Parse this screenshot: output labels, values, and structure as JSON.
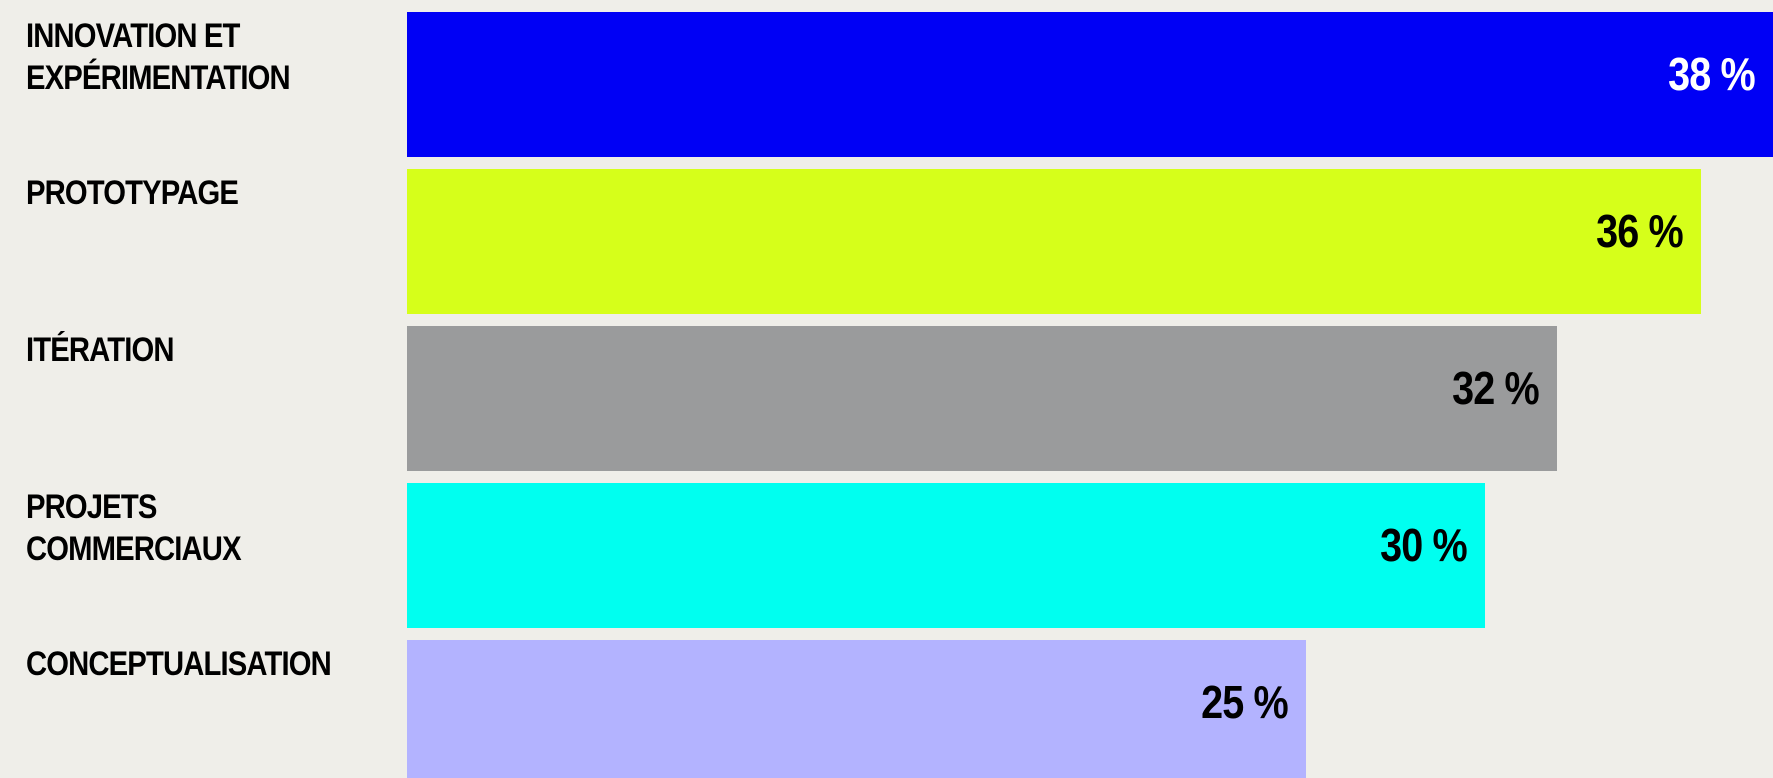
{
  "chart_data": {
    "type": "bar",
    "orientation": "horizontal",
    "categories": [
      "INNOVATION ET\nEXPÉRIMENTATION",
      "PROTOTYPAGE",
      "ITÉRATION",
      "PROJETS\nCOMMERCIAUX",
      "CONCEPTUALISATION"
    ],
    "values": [
      38,
      36,
      32,
      30,
      25
    ],
    "value_labels": [
      "38 %",
      "36 %",
      "32 %",
      "30 %",
      "25 %"
    ],
    "bar_colors": [
      "#0000f5",
      "#d6ff1a",
      "#9a9b9c",
      "#00fff0",
      "#b3b3ff"
    ],
    "value_label_colors": [
      "#ffffff",
      "#000000",
      "#000000",
      "#000000",
      "#000000"
    ],
    "xlim": [
      0,
      38
    ],
    "title": "",
    "xlabel": "",
    "ylabel": "",
    "grid": false,
    "legend": "none"
  }
}
